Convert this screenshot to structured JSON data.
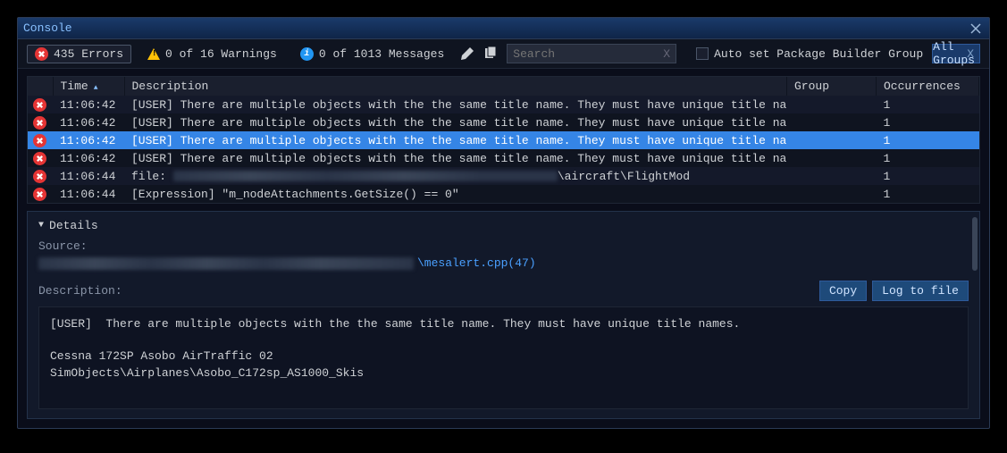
{
  "window": {
    "title": "Console"
  },
  "toolbar": {
    "errors_count": "435 Errors",
    "warnings_count": "0 of 16 Warnings",
    "messages_count": "0 of 1013 Messages",
    "search_placeholder": "Search",
    "checkbox_label": "Auto set Package Builder Group",
    "filter_label": "All Groups"
  },
  "columns": {
    "time": "Time",
    "desc": "Description",
    "group": "Group",
    "occ": "Occurrences"
  },
  "rows": [
    {
      "time": "11:06:42",
      "desc": "[USER]  There are multiple objects with the the same title name. They must have unique title names.",
      "group": "",
      "occ": "1"
    },
    {
      "time": "11:06:42",
      "desc": "[USER]  There are multiple objects with the the same title name. They must have unique title names.",
      "group": "",
      "occ": "1"
    },
    {
      "time": "11:06:42",
      "desc": "[USER]  There are multiple objects with the the same title name. They must have unique title names.",
      "group": "",
      "occ": "1",
      "selected": true
    },
    {
      "time": "11:06:42",
      "desc": "[USER]  There are multiple objects with the the same title name. They must have unique title names.",
      "group": "",
      "occ": "1"
    },
    {
      "time": "11:06:44",
      "desc_prefix": "file:",
      "desc_suffix": "\\aircraft\\FlightMod",
      "blurred": true,
      "group": "",
      "occ": "1"
    },
    {
      "time": "11:06:44",
      "desc": "  [Expression] \"m_nodeAttachments.GetSize() == 0\"",
      "group": "",
      "occ": "1"
    }
  ],
  "details": {
    "title": "Details",
    "source_label": "Source:",
    "source_suffix": "\\mesalert.cpp(47)",
    "description_label": "Description:",
    "copy_btn": "Copy",
    "log_btn": "Log to file",
    "text": "[USER]  There are multiple objects with the the same title name. They must have unique title names.\n\nCessna 172SP Asobo AirTraffic 02\nSimObjects\\Airplanes\\Asobo_C172sp_AS1000_Skis"
  },
  "colors": {
    "bg": "#0a0d1a",
    "titlebar": "#1a3a6a",
    "accent": "#3585e6",
    "error": "#e53535",
    "warn": "#ffc107",
    "info": "#2196f3",
    "link": "#4aa0ff"
  }
}
